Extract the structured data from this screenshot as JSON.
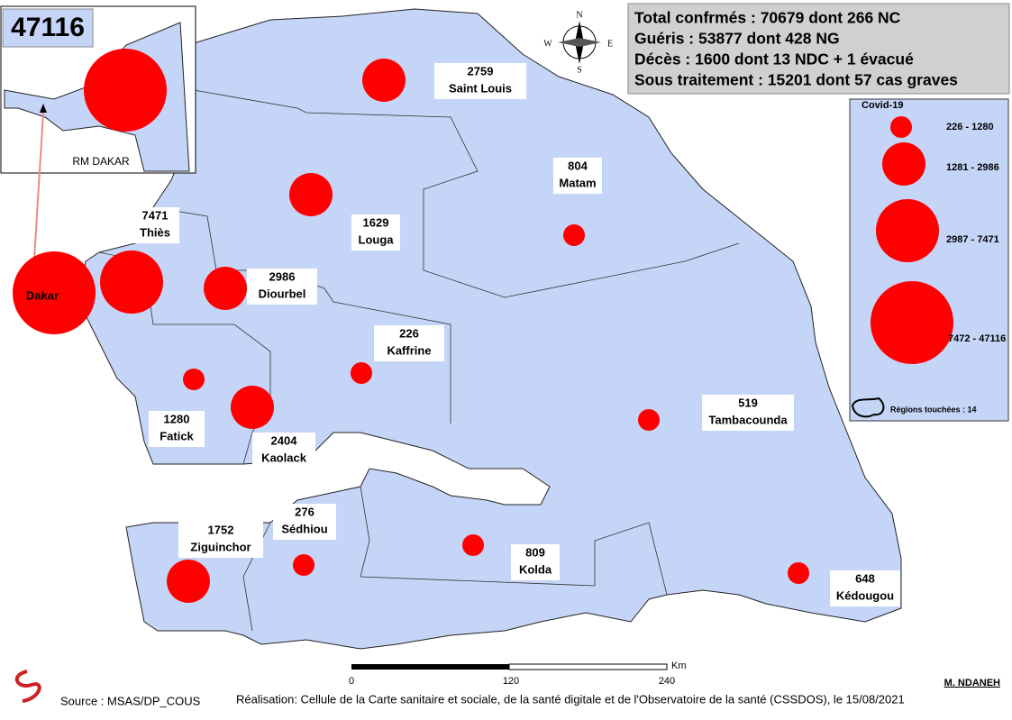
{
  "inset": {
    "label": "RM DAKAR"
  },
  "stats": [
    "Total confrmés : 70679 dont 266 NC",
    "Guéris : 53877 dont 428 NG",
    "Décès : 1600 dont 13 NDC + 1 évacué",
    "Sous traitement : 15201 dont 57 cas graves"
  ],
  "legend": {
    "title": "Covid-19",
    "classes": [
      "226 - 1280",
      "1281 - 2986",
      "2987 - 7471",
      "7472 - 47116"
    ],
    "regions_note": "Régions touchées : 14"
  },
  "regions": [
    {
      "name": "Saint Louis",
      "value": 2759
    },
    {
      "name": "Louga",
      "value": 1629
    },
    {
      "name": "Matam",
      "value": 804
    },
    {
      "name": "Thiès",
      "value": 7471
    },
    {
      "name": "Diourbel",
      "value": 2986
    },
    {
      "name": "Kaffrine",
      "value": 226
    },
    {
      "name": "Fatick",
      "value": 1280
    },
    {
      "name": "Kaolack",
      "value": 2404
    },
    {
      "name": "Tambacounda",
      "value": 519
    },
    {
      "name": "Sédhiou",
      "value": 276
    },
    {
      "name": "Ziguinchor",
      "value": 1752
    },
    {
      "name": "Kolda",
      "value": 809
    },
    {
      "name": "Kédougou",
      "value": 648
    },
    {
      "name": "Dakar",
      "value": 47116
    }
  ],
  "compass": [
    "N",
    "S",
    "E",
    "W"
  ],
  "scale": {
    "ticks": [
      "0",
      "120",
      "240"
    ],
    "unit": "Km"
  },
  "author": "M. NDANEH",
  "footer": {
    "source": "Source : MSAS/DP_COUS",
    "credit": "Réalisation: Cellule de la Carte sanitaire et sociale, de la santé digitale et de l'Observatoire de la santé (CSSDOS), le 15/08/2021"
  }
}
